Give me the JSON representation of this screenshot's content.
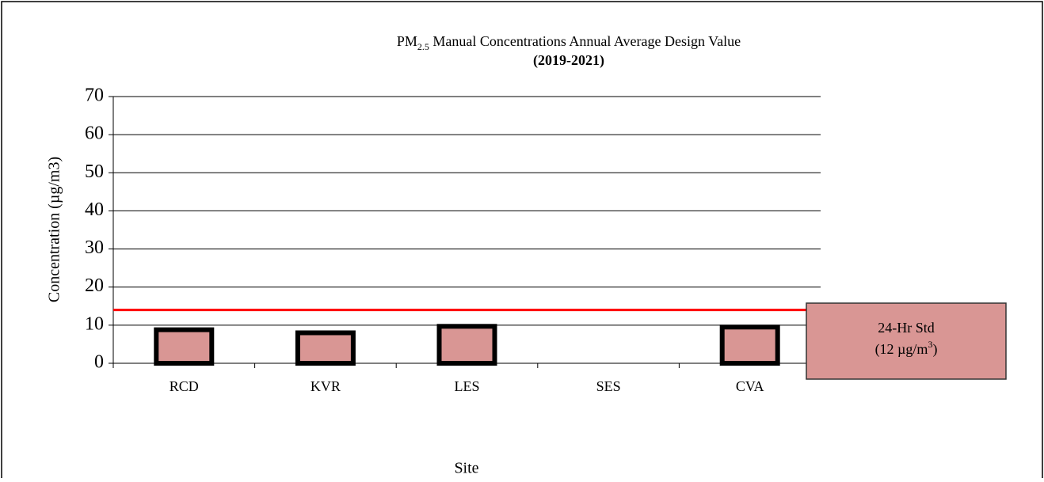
{
  "chart_data": {
    "type": "bar",
    "title": [
      "PM",
      "2.5",
      " Manual Concentrations Annual Average Design Value"
    ],
    "subtitle": "(2019-2021)",
    "x_label": "Site",
    "y_label": "Concentration (µg/m3)",
    "categories": [
      "RCD",
      "KVR",
      "LES",
      "SES",
      "CVA"
    ],
    "values": [
      8.8,
      8.0,
      9.7,
      null,
      9.5
    ],
    "color": "#d99694",
    "edge_color": "#000000",
    "ylim": [
      0,
      70
    ],
    "yticks": [
      0,
      10,
      20,
      30,
      40,
      50,
      60,
      70
    ],
    "grid": true,
    "reference_line": {
      "value": 14,
      "color": "#ff0000"
    },
    "annotation": {
      "line1": "24-Hr Std",
      "line2": [
        "(12 µg/m",
        "3",
        ")"
      ]
    }
  }
}
